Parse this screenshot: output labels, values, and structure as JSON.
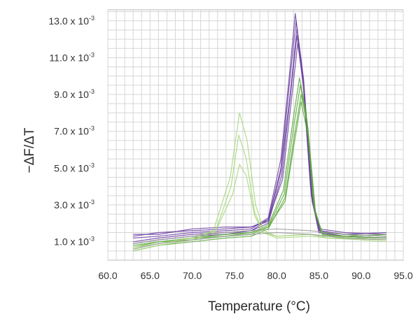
{
  "chart_data": {
    "type": "line",
    "title": "",
    "xlabel": "Temperature (°C)",
    "ylabel": "−ΔF/ΔT",
    "xlim": [
      60,
      95
    ],
    "ylim": [
      0,
      13.6
    ],
    "y_exponent": "-3",
    "grid": true,
    "xticks": [
      60,
      65,
      70,
      75,
      80,
      85,
      90,
      95
    ],
    "xtick_labels": [
      "60.0",
      "65.0",
      "70.0",
      "75.0",
      "80.0",
      "85.0",
      "90.0",
      "95.0"
    ],
    "yticks": [
      1,
      3,
      5,
      7,
      9,
      11,
      13
    ],
    "ytick_labels": [
      "1.0 x 10",
      "3.0 x 10",
      "5.0 x 10",
      "7.0 x 10",
      "9.0 x 10",
      "11.0 x 10",
      "13.0 x 10"
    ],
    "colors": {
      "purple": "#6b3fa0",
      "green": "#5aa83a",
      "light_green": "#a6d67a",
      "gray": "#9a9a9a",
      "grid": "#d6d6d6"
    },
    "series": [
      {
        "color": "purple",
        "values": [
          [
            63,
            1.2
          ],
          [
            66,
            1.3
          ],
          [
            70,
            1.5
          ],
          [
            74,
            1.6
          ],
          [
            77,
            1.7
          ],
          [
            79,
            2.3
          ],
          [
            80.5,
            5.5
          ],
          [
            81.5,
            10.0
          ],
          [
            82.2,
            13.4
          ],
          [
            83,
            10.5
          ],
          [
            84,
            4.0
          ],
          [
            85,
            1.6
          ],
          [
            88,
            1.4
          ],
          [
            93,
            1.3
          ]
        ]
      },
      {
        "color": "purple",
        "values": [
          [
            63,
            0.9
          ],
          [
            66,
            1.1
          ],
          [
            70,
            1.3
          ],
          [
            74,
            1.4
          ],
          [
            77,
            1.6
          ],
          [
            79,
            2.2
          ],
          [
            80.5,
            5.0
          ],
          [
            81.5,
            9.5
          ],
          [
            82.3,
            13.0
          ],
          [
            83.1,
            10.0
          ],
          [
            84.1,
            3.5
          ],
          [
            85,
            1.5
          ],
          [
            88,
            1.3
          ],
          [
            93,
            1.2
          ]
        ]
      },
      {
        "color": "purple",
        "values": [
          [
            63,
            1.4
          ],
          [
            66,
            1.4
          ],
          [
            70,
            1.7
          ],
          [
            74,
            1.8
          ],
          [
            77,
            1.8
          ],
          [
            79,
            2.1
          ],
          [
            80.5,
            4.8
          ],
          [
            81.6,
            9.0
          ],
          [
            82.4,
            12.6
          ],
          [
            83.2,
            9.8
          ],
          [
            84.2,
            3.4
          ],
          [
            85.1,
            1.7
          ],
          [
            88,
            1.5
          ],
          [
            93,
            1.4
          ]
        ]
      },
      {
        "color": "purple",
        "values": [
          [
            63,
            1.0
          ],
          [
            66,
            1.2
          ],
          [
            70,
            1.4
          ],
          [
            74,
            1.5
          ],
          [
            77,
            1.6
          ],
          [
            79,
            2.0
          ],
          [
            80.6,
            4.6
          ],
          [
            81.6,
            8.8
          ],
          [
            82.4,
            12.2
          ],
          [
            83.2,
            9.5
          ],
          [
            84.2,
            3.2
          ],
          [
            85.1,
            1.6
          ],
          [
            88,
            1.4
          ],
          [
            93,
            1.5
          ]
        ]
      },
      {
        "color": "purple",
        "values": [
          [
            63,
            1.3
          ],
          [
            66,
            1.5
          ],
          [
            70,
            1.6
          ],
          [
            74,
            1.7
          ],
          [
            77,
            1.8
          ],
          [
            79,
            2.2
          ],
          [
            80.7,
            4.4
          ],
          [
            81.7,
            8.5
          ],
          [
            82.5,
            11.8
          ],
          [
            83.3,
            9.0
          ],
          [
            84.3,
            3.0
          ],
          [
            85.2,
            1.5
          ],
          [
            88,
            1.3
          ],
          [
            93,
            1.2
          ]
        ]
      },
      {
        "color": "green",
        "values": [
          [
            63,
            0.6
          ],
          [
            66,
            0.9
          ],
          [
            70,
            1.2
          ],
          [
            74,
            1.4
          ],
          [
            77,
            1.5
          ],
          [
            79,
            1.9
          ],
          [
            80.8,
            3.8
          ],
          [
            81.9,
            7.5
          ],
          [
            82.7,
            9.9
          ],
          [
            83.5,
            8.0
          ],
          [
            84.4,
            3.0
          ],
          [
            85.3,
            1.5
          ],
          [
            88,
            1.4
          ],
          [
            93,
            1.3
          ]
        ]
      },
      {
        "color": "green",
        "values": [
          [
            63,
            0.8
          ],
          [
            66,
            1.0
          ],
          [
            70,
            1.1
          ],
          [
            74,
            1.3
          ],
          [
            77,
            1.4
          ],
          [
            79,
            1.8
          ],
          [
            80.9,
            3.6
          ],
          [
            82,
            7.2
          ],
          [
            82.8,
            9.5
          ],
          [
            83.6,
            7.6
          ],
          [
            84.5,
            2.8
          ],
          [
            85.4,
            1.4
          ],
          [
            88,
            1.2
          ],
          [
            93,
            1.1
          ]
        ]
      },
      {
        "color": "green",
        "values": [
          [
            63,
            0.5
          ],
          [
            66,
            0.8
          ],
          [
            70,
            1.0
          ],
          [
            74,
            1.2
          ],
          [
            77,
            1.3
          ],
          [
            79,
            1.7
          ],
          [
            81,
            3.4
          ],
          [
            82.1,
            6.8
          ],
          [
            82.9,
            9.0
          ],
          [
            83.7,
            7.2
          ],
          [
            84.6,
            2.6
          ],
          [
            85.5,
            1.3
          ],
          [
            88,
            1.3
          ],
          [
            93,
            1.4
          ]
        ]
      },
      {
        "color": "green",
        "values": [
          [
            63,
            0.7
          ],
          [
            66,
            1.0
          ],
          [
            70,
            1.2
          ],
          [
            74,
            1.3
          ],
          [
            77,
            1.5
          ],
          [
            79,
            1.8
          ],
          [
            81,
            3.2
          ],
          [
            82.1,
            6.4
          ],
          [
            82.9,
            8.6
          ],
          [
            83.7,
            6.8
          ],
          [
            84.6,
            2.5
          ],
          [
            85.5,
            1.4
          ],
          [
            88,
            1.3
          ],
          [
            93,
            1.2
          ]
        ]
      },
      {
        "color": "light_green",
        "values": [
          [
            63,
            0.6
          ],
          [
            66,
            0.9
          ],
          [
            70,
            1.2
          ],
          [
            72.5,
            1.6
          ],
          [
            74.5,
            4.5
          ],
          [
            75.6,
            8.0
          ],
          [
            76.5,
            6.5
          ],
          [
            77.5,
            3.0
          ],
          [
            78.5,
            1.6
          ],
          [
            80,
            1.3
          ],
          [
            84,
            1.4
          ],
          [
            86,
            1.3
          ],
          [
            90,
            1.2
          ],
          [
            93,
            1.1
          ]
        ]
      },
      {
        "color": "light_green",
        "values": [
          [
            63,
            0.5
          ],
          [
            66,
            0.8
          ],
          [
            70,
            1.1
          ],
          [
            72.7,
            1.5
          ],
          [
            74.6,
            4.0
          ],
          [
            75.5,
            6.8
          ],
          [
            76.4,
            5.5
          ],
          [
            77.4,
            2.6
          ],
          [
            78.4,
            1.5
          ],
          [
            80,
            1.2
          ],
          [
            84,
            1.3
          ],
          [
            86,
            1.2
          ],
          [
            90,
            1.1
          ],
          [
            93,
            1.0
          ]
        ]
      },
      {
        "color": "light_green",
        "values": [
          [
            63,
            0.7
          ],
          [
            66,
            0.9
          ],
          [
            70,
            1.2
          ],
          [
            72.8,
            1.6
          ],
          [
            74.8,
            3.6
          ],
          [
            75.6,
            5.2
          ],
          [
            76.4,
            4.6
          ],
          [
            77.4,
            2.4
          ],
          [
            78.4,
            1.5
          ],
          [
            80,
            1.3
          ],
          [
            84,
            1.4
          ],
          [
            86,
            1.2
          ],
          [
            90,
            1.2
          ],
          [
            93,
            1.1
          ]
        ]
      },
      {
        "color": "gray",
        "values": [
          [
            63,
            0.9
          ],
          [
            66,
            1.1
          ],
          [
            70,
            1.3
          ],
          [
            74,
            1.5
          ],
          [
            77,
            1.6
          ],
          [
            80,
            1.7
          ],
          [
            84,
            1.6
          ],
          [
            88,
            1.4
          ],
          [
            93,
            1.3
          ]
        ]
      },
      {
        "color": "gray",
        "values": [
          [
            63,
            0.6
          ],
          [
            66,
            0.9
          ],
          [
            70,
            1.1
          ],
          [
            74,
            1.3
          ],
          [
            77,
            1.4
          ],
          [
            80,
            1.5
          ],
          [
            84,
            1.4
          ],
          [
            88,
            1.2
          ],
          [
            93,
            1.1
          ]
        ]
      }
    ]
  }
}
